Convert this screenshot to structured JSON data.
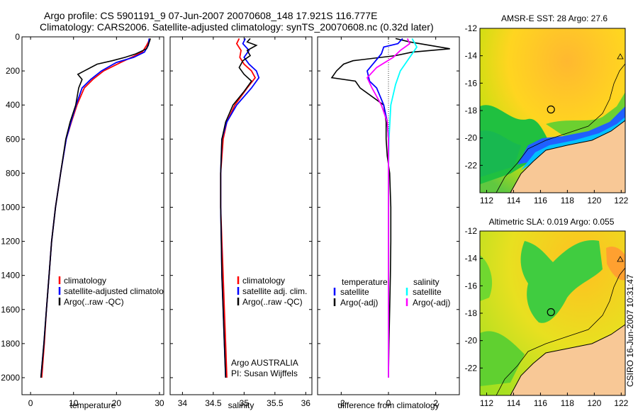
{
  "title_line1": "Argo profile: CS 5901191_9 07-Jun-2007 20070608_148 17.921S 116.777E",
  "title_line2": "Climatology: CARS2006. Satellite-adjusted climatology: synTS_20070608.nc (0.32d later)",
  "credit": "CSIRO 16-Jun-2007 10:31:47",
  "colors": {
    "red": "#ff0000",
    "blue": "#0000ff",
    "black": "#000000",
    "cyan": "#00ffff",
    "magenta": "#ff00ff",
    "land": "#f8c896"
  },
  "chart_data": [
    {
      "type": "line",
      "xlabel": "temperature",
      "xlim": [
        -2,
        31
      ],
      "xticks": [
        0,
        10,
        20,
        30
      ],
      "ylim": [
        2100,
        0
      ],
      "yticks": [
        0,
        200,
        400,
        600,
        800,
        1000,
        1200,
        1400,
        1600,
        1800,
        2000
      ],
      "legend": [
        {
          "color": "red",
          "label": "climatology"
        },
        {
          "color": "blue",
          "label": "satellite-adjusted climatolo"
        },
        {
          "color": "black",
          "label": "Argo(..raw -QC)"
        }
      ],
      "series": [
        {
          "color": "red",
          "points": [
            [
              27.8,
              10
            ],
            [
              27.0,
              50
            ],
            [
              26.0,
              90
            ],
            [
              23.5,
              120
            ],
            [
              21.0,
              150
            ],
            [
              17.0,
              200
            ],
            [
              14.5,
              250
            ],
            [
              12.5,
              300
            ],
            [
              10.8,
              400
            ],
            [
              9.5,
              500
            ],
            [
              8.3,
              600
            ],
            [
              7.0,
              800
            ],
            [
              5.8,
              1000
            ],
            [
              4.9,
              1200
            ],
            [
              4.3,
              1400
            ],
            [
              3.7,
              1600
            ],
            [
              3.2,
              1800
            ],
            [
              2.6,
              2000
            ]
          ]
        },
        {
          "color": "blue",
          "points": [
            [
              27.6,
              10
            ],
            [
              27.4,
              50
            ],
            [
              26.5,
              90
            ],
            [
              24.0,
              120
            ],
            [
              20.0,
              150
            ],
            [
              16.5,
              200
            ],
            [
              14.0,
              250
            ],
            [
              12.0,
              300
            ],
            [
              10.6,
              400
            ],
            [
              9.4,
              500
            ],
            [
              8.3,
              600
            ],
            [
              7.0,
              800
            ],
            [
              5.8,
              1000
            ],
            [
              4.9,
              1200
            ],
            [
              4.3,
              1400
            ],
            [
              3.7,
              1600
            ],
            [
              3.1,
              1800
            ],
            [
              2.4,
              2000
            ]
          ]
        },
        {
          "color": "black",
          "points": [
            [
              27.9,
              10
            ],
            [
              27.5,
              40
            ],
            [
              27.0,
              70
            ],
            [
              24.5,
              100
            ],
            [
              22.0,
              120
            ],
            [
              19.0,
              140
            ],
            [
              15.5,
              160
            ],
            [
              12.5,
              200
            ],
            [
              11.0,
              220
            ],
            [
              12.0,
              250
            ],
            [
              11.2,
              300
            ],
            [
              10.5,
              400
            ],
            [
              9.2,
              500
            ],
            [
              8.2,
              600
            ],
            [
              7.0,
              800
            ],
            [
              5.8,
              1000
            ],
            [
              4.9,
              1200
            ],
            [
              4.3,
              1400
            ],
            [
              3.7,
              1600
            ],
            [
              3.1,
              1800
            ],
            [
              2.4,
              2000
            ]
          ]
        }
      ]
    },
    {
      "type": "line",
      "xlabel": "salinity",
      "xlim": [
        33.8,
        36.1
      ],
      "xticks": [
        34,
        34.5,
        35,
        35.5,
        36
      ],
      "xtick_labels": [
        "34",
        "34.5",
        "35",
        "35.5",
        "36"
      ],
      "ylim": [
        2100,
        0
      ],
      "legend": [
        {
          "color": "red",
          "label": "climatology"
        },
        {
          "color": "blue",
          "label": "satellite adj. clim."
        },
        {
          "color": "black",
          "label": "Argo(..raw -QC)"
        }
      ],
      "annotations": [
        "Argo AUSTRALIA",
        "PI: Susan Wijffels"
      ],
      "series": [
        {
          "color": "red",
          "points": [
            [
              34.92,
              10
            ],
            [
              34.88,
              40
            ],
            [
              34.95,
              80
            ],
            [
              34.93,
              120
            ],
            [
              35.0,
              160
            ],
            [
              35.12,
              200
            ],
            [
              35.18,
              240
            ],
            [
              35.05,
              300
            ],
            [
              34.85,
              400
            ],
            [
              34.72,
              500
            ],
            [
              34.66,
              600
            ],
            [
              34.62,
              800
            ],
            [
              34.62,
              1000
            ],
            [
              34.64,
              1200
            ],
            [
              34.66,
              1400
            ],
            [
              34.68,
              1600
            ],
            [
              34.7,
              1800
            ],
            [
              34.72,
              2000
            ]
          ]
        },
        {
          "color": "blue",
          "points": [
            [
              35.02,
              10
            ],
            [
              34.98,
              40
            ],
            [
              35.08,
              80
            ],
            [
              35.0,
              120
            ],
            [
              35.08,
              160
            ],
            [
              35.2,
              200
            ],
            [
              35.24,
              240
            ],
            [
              35.12,
              300
            ],
            [
              34.88,
              400
            ],
            [
              34.72,
              500
            ],
            [
              34.64,
              600
            ],
            [
              34.62,
              800
            ],
            [
              34.62,
              1000
            ],
            [
              34.63,
              1200
            ],
            [
              34.64,
              1400
            ],
            [
              34.66,
              1600
            ],
            [
              34.68,
              1800
            ],
            [
              34.7,
              2000
            ]
          ]
        },
        {
          "color": "black",
          "points": [
            [
              35.1,
              10
            ],
            [
              35.05,
              30
            ],
            [
              35.2,
              50
            ],
            [
              35.05,
              80
            ],
            [
              35.1,
              110
            ],
            [
              34.98,
              140
            ],
            [
              34.92,
              180
            ],
            [
              35.0,
              220
            ],
            [
              35.12,
              260
            ],
            [
              35.0,
              320
            ],
            [
              34.82,
              400
            ],
            [
              34.7,
              500
            ],
            [
              34.64,
              600
            ],
            [
              34.62,
              800
            ],
            [
              34.62,
              1000
            ],
            [
              34.63,
              1200
            ],
            [
              34.64,
              1400
            ],
            [
              34.66,
              1600
            ],
            [
              34.68,
              1800
            ],
            [
              34.7,
              2000
            ]
          ]
        }
      ]
    },
    {
      "type": "line",
      "xlabel": "difference from climatology",
      "xlim": [
        -3,
        3
      ],
      "xticks": [
        -2,
        0,
        2
      ],
      "ylim": [
        2100,
        0
      ],
      "legend_left_title": "temperature",
      "legend_right_title": "salinity",
      "legend": [
        {
          "color": "blue",
          "label": "satellite"
        },
        {
          "color": "black",
          "label": "Argo(-adj)"
        },
        {
          "color": "cyan",
          "label": "satellite"
        },
        {
          "color": "magenta",
          "label": "Argo(-adj)"
        }
      ],
      "series": [
        {
          "color": "black",
          "points": [
            [
              0.3,
              10
            ],
            [
              0.9,
              30
            ],
            [
              2.6,
              70
            ],
            [
              1.0,
              90
            ],
            [
              0.3,
              110
            ],
            [
              -1.5,
              140
            ],
            [
              -1.9,
              160
            ],
            [
              -2.2,
              200
            ],
            [
              -2.4,
              240
            ],
            [
              -1.4,
              260
            ],
            [
              -1.2,
              300
            ],
            [
              -0.2,
              400
            ],
            [
              -0.1,
              500
            ],
            [
              -0.1,
              600
            ],
            [
              -0.05,
              700
            ],
            [
              0.05,
              800
            ],
            [
              0.1,
              1000
            ],
            [
              0.1,
              1200
            ],
            [
              0.08,
              1400
            ],
            [
              0.05,
              1600
            ],
            [
              0.02,
              1800
            ],
            [
              0.0,
              2000
            ]
          ]
        },
        {
          "color": "blue",
          "points": [
            [
              0.6,
              10
            ],
            [
              0.4,
              40
            ],
            [
              -0.2,
              60
            ],
            [
              -0.3,
              100
            ],
            [
              -0.6,
              150
            ],
            [
              -0.9,
              200
            ],
            [
              -0.8,
              260
            ],
            [
              -0.5,
              300
            ],
            [
              -0.2,
              400
            ],
            [
              -0.05,
              500
            ],
            [
              0.0,
              600
            ],
            [
              0.0,
              800
            ],
            [
              0.0,
              1000
            ],
            [
              0.0,
              1400
            ],
            [
              0.0,
              2000
            ]
          ]
        },
        {
          "color": "cyan",
          "points": [
            [
              1.0,
              10
            ],
            [
              1.2,
              60
            ],
            [
              0.9,
              120
            ],
            [
              0.5,
              200
            ],
            [
              0.3,
              280
            ],
            [
              0.1,
              400
            ],
            [
              0.02,
              600
            ],
            [
              0.0,
              800
            ],
            [
              0.0,
              1000
            ],
            [
              0.0,
              1400
            ],
            [
              0.0,
              2000
            ]
          ]
        },
        {
          "color": "magenta",
          "points": [
            [
              0.8,
              10
            ],
            [
              0.9,
              40
            ],
            [
              0.5,
              80
            ],
            [
              0.2,
              120
            ],
            [
              -0.5,
              180
            ],
            [
              -0.9,
              240
            ],
            [
              -0.7,
              300
            ],
            [
              -0.3,
              400
            ],
            [
              -0.05,
              500
            ],
            [
              0.0,
              600
            ],
            [
              0.0,
              800
            ],
            [
              0.0,
              1000
            ],
            [
              0.0,
              1400
            ],
            [
              0.0,
              2000
            ]
          ]
        }
      ]
    },
    {
      "type": "heatmap",
      "title": "AMSR-E SST: 28 Argo: 27.6",
      "xlim": [
        111.5,
        122.3
      ],
      "ylim": [
        -24,
        -12
      ],
      "xticks": [
        112,
        114,
        116,
        118,
        120,
        122
      ],
      "yticks": [
        -12,
        -14,
        -16,
        -18,
        -20,
        -22
      ],
      "marker": [
        116.777,
        -17.921
      ]
    },
    {
      "type": "heatmap",
      "title": "Altimetric SLA: 0.019 Argo: 0.055",
      "xlim": [
        111.5,
        122.3
      ],
      "ylim": [
        -24,
        -12
      ],
      "xticks": [
        112,
        114,
        116,
        118,
        120,
        122
      ],
      "yticks": [
        -12,
        -14,
        -16,
        -18,
        -20,
        -22
      ],
      "marker": [
        116.777,
        -17.921
      ]
    }
  ]
}
